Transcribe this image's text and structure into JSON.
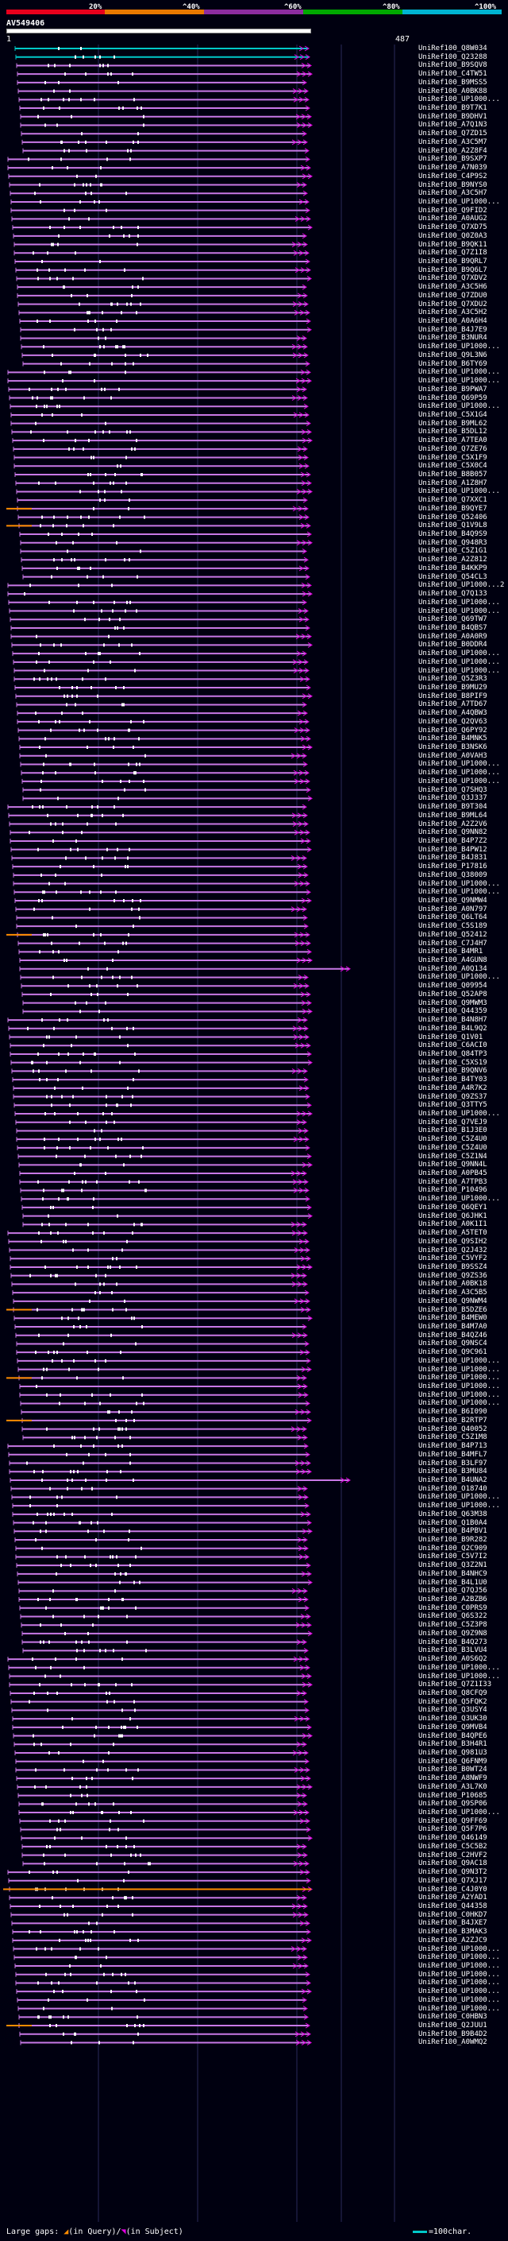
{
  "scale": {
    "labels": [
      "20%",
      "^40%",
      "^60%",
      "^80%",
      "^100%"
    ],
    "colors": [
      "#e8001c",
      "#e87800",
      "#8c2ca0",
      "#00a800",
      "#00b4d2"
    ]
  },
  "query": {
    "id": "AV549406",
    "start": "1",
    "end": "487"
  },
  "colors": {
    "background": "#000010",
    "hit": "#e000e0",
    "hit_line": "#c878e6",
    "gap_query": "#ff8c00",
    "best_hit": "#00c8c8",
    "grid": "#2a2a5a"
  },
  "hits": [
    "UniRef100_Q8W034",
    "UniRef100_Q23288",
    "UniRef100_B9SQV8",
    "UniRef100_C4TW51",
    "UniRef100_B9MSS5",
    "UniRef100_A0BK88",
    "UniRef100_UP1000...",
    "UniRef100_B9T7K1",
    "UniRef100_B9DHV1",
    "UniRef100_A7Q1N3",
    "UniRef100_Q7ZD15",
    "UniRef100_A3C5M7",
    "UniRef100_A2Z8F4",
    "UniRef100_B9SXP7",
    "UniRef100_A7N039",
    "UniRef100_C4P9S2",
    "UniRef100_B9NYS0",
    "UniRef100_A3C5H7",
    "UniRef100_UP1000...",
    "UniRef100_Q9FID2",
    "UniRef100_A0AUG2",
    "UniRef100_Q7XD75",
    "UniRef100_Q0Z0A3",
    "UniRef100_B9QK11",
    "UniRef100_Q7Z1I8",
    "UniRef100_B9QRL7",
    "UniRef100_B9Q6L7",
    "UniRef100_Q7XDV2",
    "UniRef100_A3C5H6",
    "UniRef100_Q7ZDU0",
    "UniRef100_Q7XDU2",
    "UniRef100_A3C5H2",
    "UniRef100_A0A6H4",
    "UniRef100_B4J7E9",
    "UniRef100_B3NUR4",
    "UniRef100_UP1000...",
    "UniRef100_Q9L3N6",
    "UniRef100_B6TY69",
    "UniRef100_UP1000...",
    "UniRef100_UP1000...",
    "UniRef100_B9PWA7",
    "UniRef100_Q69P59",
    "UniRef100_UP1000...",
    "UniRef100_C5X1G4",
    "UniRef100_B9ML62",
    "UniRef100_B5DL12",
    "UniRef100_A7TEA0",
    "UniRef100_Q7ZE76",
    "UniRef100_C5X1F9",
    "UniRef100_C5X0C4",
    "UniRef100_B8B057",
    "UniRef100_A1Z8H7",
    "UniRef100_UP1000...",
    "UniRef100_Q7XXC1",
    "UniRef100_B9QYE7",
    "UniRef100_Q52406",
    "UniRef100_Q1V9L8",
    "UniRef100_B4Q9S9",
    "UniRef100_Q948R3",
    "UniRef100_C5Z1G1",
    "UniRef100_A2Z812",
    "UniRef100_B4KKP9",
    "UniRef100_Q54CL3",
    "UniRef100_UP1000...2",
    "UniRef100_Q7Q133",
    "UniRef100_UP1000...",
    "UniRef100_UP1000...",
    "UniRef100_Q69TW7",
    "UniRef100_B4QBS7",
    "UniRef100_A0A0R9",
    "UniRef100_B0DDR4",
    "UniRef100_UP1000...",
    "UniRef100_UP1000...",
    "UniRef100_UP1000...",
    "UniRef100_Q5Z3R3",
    "UniRef100_B9MU29",
    "UniRef100_B8PIF9",
    "UniRef100_A7TD67",
    "UniRef100_A4QBW3",
    "UniRef100_Q2QV63",
    "UniRef100_Q6PY92",
    "UniRef100_B4MNK5",
    "UniRef100_B3NSK6",
    "UniRef100_A0VAH3",
    "UniRef100_UP1000...",
    "UniRef100_UP1000...",
    "UniRef100_UP1000...",
    "UniRef100_Q7SHQ3",
    "UniRef100_Q3J337",
    "UniRef100_B9T304",
    "UniRef100_B9ML64",
    "UniRef100_A2Z2V6",
    "UniRef100_Q9NN82",
    "UniRef100_B4P7Z2",
    "UniRef100_B4PW12",
    "UniRef100_B4J831",
    "UniRef100_P17816",
    "UniRef100_Q38009",
    "UniRef100_UP1000...",
    "UniRef100_UP1000...",
    "UniRef100_Q9NMW4",
    "UniRef100_A0N797",
    "UniRef100_Q6LT64",
    "UniRef100_C5S189",
    "UniRef100_Q52412",
    "UniRef100_C7J4H7",
    "UniRef100_B4MR1",
    "UniRef100_A4GUN8",
    "UniRef100_A0Q134",
    "UniRef100_UP1000...",
    "UniRef100_Q09954",
    "UniRef100_Q52AP8",
    "UniRef100_Q9MWM3",
    "UniRef100_Q44359",
    "UniRef100_B4N8H7",
    "UniRef100_B4L9Q2",
    "UniRef100_Q1V01",
    "UniRef100_C6ACI0",
    "UniRef100_Q84TP3",
    "UniRef100_C5XS19",
    "UniRef100_B9QNV6",
    "UniRef100_B4TY03",
    "UniRef100_A4R7K2",
    "UniRef100_Q9ZS37",
    "UniRef100_Q3TTY5",
    "UniRef100_UP1000...",
    "UniRef100_Q7VEJ9",
    "UniRef100_B1J3E0",
    "UniRef100_C5Z4U0",
    "UniRef100_C5Z4U0",
    "UniRef100_C5Z1N4",
    "UniRef100_Q9NN4L",
    "UniRef100_A0PB45",
    "UniRef100_A7TPB3",
    "UniRef100_P10496",
    "UniRef100_UP1000...",
    "UniRef100_Q6QEY1",
    "UniRef100_Q6JHK1",
    "UniRef100_A0K1I1",
    "UniRef100_A5TET0",
    "UniRef100_Q9SIH2",
    "UniRef100_Q2J432",
    "UniRef100_C5VYF2",
    "UniRef100_B9SSZ4",
    "UniRef100_Q9ZS36",
    "UniRef100_A0BK18",
    "UniRef100_A3C5B5",
    "UniRef100_Q9NWM4",
    "UniRef100_B5DZE6",
    "UniRef100_B4MEW0",
    "UniRef100_B4M7A0",
    "UniRef100_B4QZ46",
    "UniRef100_Q9NSC4",
    "UniRef100_Q9C961",
    "UniRef100_UP1000...",
    "UniRef100_UP1000...",
    "UniRef100_UP1000...",
    "UniRef100_UP1000...",
    "UniRef100_UP1000...",
    "UniRef100_UP1000...",
    "UniRef100_B6I090",
    "UniRef100_B2RTP7",
    "UniRef100_Q40052",
    "UniRef100_C5Z1M8",
    "UniRef100_B4P713",
    "UniRef100_B4MFL7",
    "UniRef100_B3LF97",
    "UniRef100_B3MU84",
    "UniRef100_B4UNA2",
    "UniRef100_O18740",
    "UniRef100_UP1000...",
    "UniRef100_UP1000...",
    "UniRef100_Q63M38",
    "UniRef100_Q1B0A4",
    "UniRef100_B4PBV1",
    "UniRef100_B9R282",
    "UniRef100_Q2C909",
    "UniRef100_C5V7I2",
    "UniRef100_Q3Z2N1",
    "UniRef100_B4NHC9",
    "UniRef100_B4L1U0",
    "UniRef100_Q7QJ56",
    "UniRef100_A2BZB6",
    "UniRef100_C0PRS9",
    "UniRef100_Q6S322",
    "UniRef100_C5Z3P8",
    "UniRef100_Q9Z9N8",
    "UniRef100_B4Q273",
    "UniRef100_B3LVU4",
    "UniRef100_A0S6Q2",
    "UniRef100_UP1000...",
    "UniRef100_UP1000...",
    "UniRef100_Q7Z1I33",
    "UniRef100_Q8CFQ9",
    "UniRef100_Q5FQK2",
    "UniRef100_Q3USY4",
    "UniRef100_Q3UK30",
    "UniRef100_Q9MVB4",
    "UniRef100_B4QPE6",
    "UniRef100_B3H4R1",
    "UniRef100_Q981U3",
    "UniRef100_Q6FNM9",
    "UniRef100_B0WT24",
    "UniRef100_A8NWF9",
    "UniRef100_A3L7K0",
    "UniRef100_P10685",
    "UniRef100_Q9SP06",
    "UniRef100_UP1000...",
    "UniRef100_Q9FF69",
    "UniRef100_Q5F7P6",
    "UniRef100_Q46149",
    "UniRef100_C5C5B2",
    "UniRef100_C2HVF2",
    "UniRef100_Q9AC18",
    "UniRef100_Q9N3T2",
    "UniRef100_Q7XJ17",
    "UniRef100_C4J0Y0",
    "UniRef100_A2YAD1",
    "UniRef100_Q44358",
    "UniRef100_C0HKD7",
    "UniRef100_B4JXE7",
    "UniRef100_B3MAK3",
    "UniRef100_A2ZJC9",
    "UniRef100_UP1000...",
    "UniRef100_UP1000...",
    "UniRef100_UP1000...",
    "UniRef100_UP1000...",
    "UniRef100_UP1000...",
    "UniRef100_UP1000...",
    "UniRef100_UP1000...",
    "UniRef100_UP1000...",
    "UniRef100_C0HBN3",
    "UniRef100_Q2JUU1",
    "UniRef100_B9B4D2",
    "UniRef100_A0WMQ2"
  ],
  "legend": {
    "large_gaps": "Large gaps:",
    "query_label": "(in Query)/",
    "subject_label": "(in Subject)",
    "scale_label": "=100char."
  }
}
